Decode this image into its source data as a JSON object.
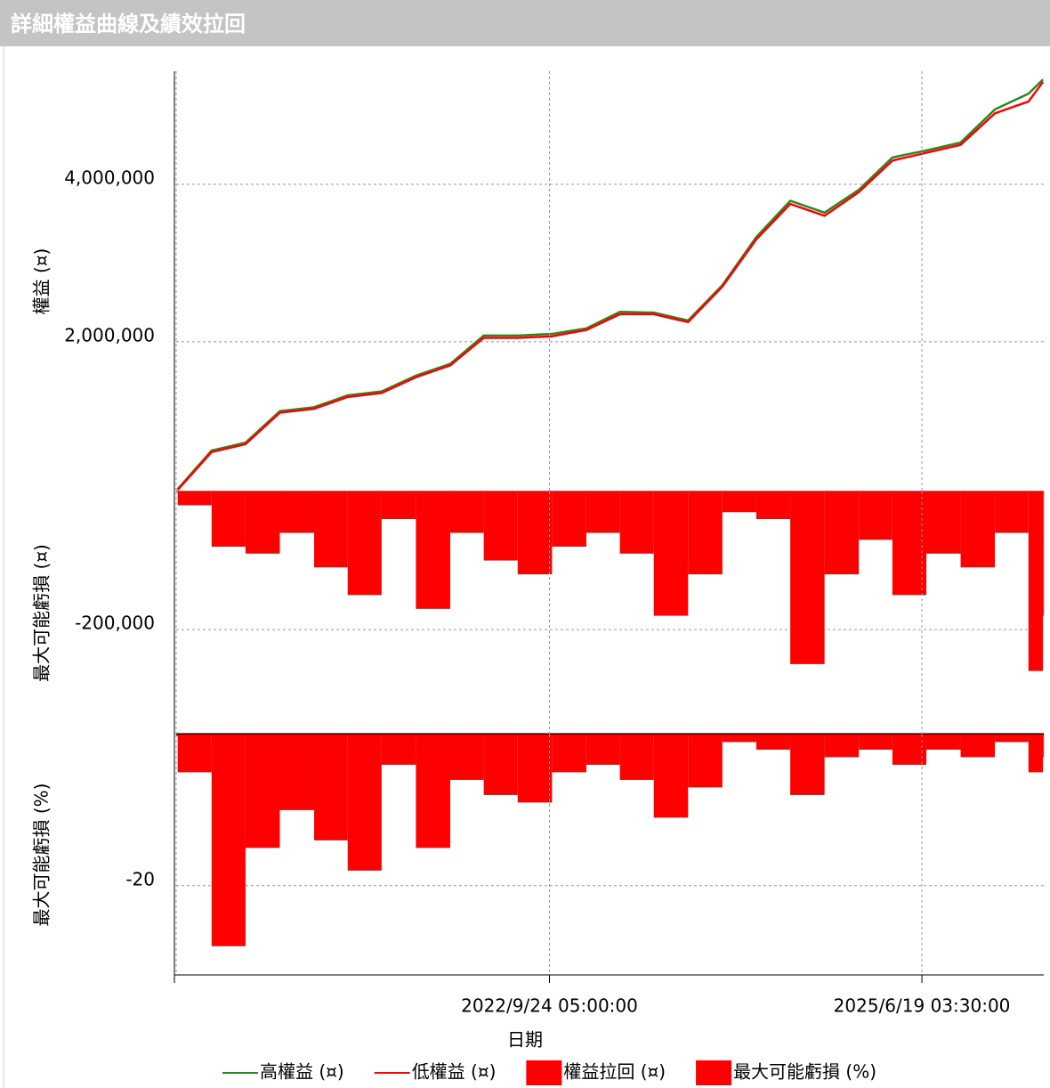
{
  "chart_data": [
    {
      "type": "line",
      "title": "詳細權益曲線及績效拉回",
      "ylabel": "權益 (¤)",
      "x": [
        "2020/1/1",
        "2020/4/1",
        "2020/7/1",
        "2020/10/1",
        "2021/1/1",
        "2021/4/1",
        "2021/7/1",
        "2021/10/1",
        "2022/1/1",
        "2022/4/1",
        "2022/7/1",
        "2022/10/1",
        "2023/1/1",
        "2023/4/1",
        "2023/7/1",
        "2023/10/1",
        "2024/1/1",
        "2024/4/1",
        "2024/7/1",
        "2024/10/1",
        "2025/1/1",
        "2025/4/1",
        "2025/7/1",
        "2025/10/1",
        "2026/1/1",
        "2026/4/1",
        "2026/5/10"
      ],
      "xlim": [
        "2019/12/28",
        "2026/5/12"
      ],
      "ylim": [
        100000,
        5435000
      ],
      "yticks": [
        {
          "value": 2000000,
          "label": "2,000,000"
        },
        {
          "value": 4000000,
          "label": "4,000,000"
        }
      ],
      "grid": true,
      "series": [
        {
          "name": "高權益 (¤)",
          "color": "#228b22",
          "values": [
            130000,
            620000,
            720000,
            1120000,
            1170000,
            1320000,
            1370000,
            1570000,
            1720000,
            2080000,
            2080000,
            2100000,
            2170000,
            2380000,
            2370000,
            2270000,
            2720000,
            3330000,
            3790000,
            3640000,
            3930000,
            4340000,
            4430000,
            4530000,
            4950000,
            5150000,
            5330000
          ]
        },
        {
          "name": "低權益 (¤)",
          "color": "#ff0000",
          "values": [
            120000,
            600000,
            700000,
            1100000,
            1150000,
            1300000,
            1350000,
            1550000,
            1700000,
            2050000,
            2050000,
            2070000,
            2150000,
            2350000,
            2350000,
            2250000,
            2700000,
            3300000,
            3750000,
            3600000,
            3900000,
            4300000,
            4400000,
            4500000,
            4900000,
            5050000,
            5300000
          ]
        }
      ]
    },
    {
      "type": "bar",
      "ylabel": "最大可能虧損 (¤)",
      "x": [
        "2020/1/1",
        "2020/4/1",
        "2020/7/1",
        "2020/10/1",
        "2021/1/1",
        "2021/4/1",
        "2021/7/1",
        "2021/10/1",
        "2022/1/1",
        "2022/4/1",
        "2022/7/1",
        "2022/10/1",
        "2023/1/1",
        "2023/4/1",
        "2023/7/1",
        "2023/10/1",
        "2024/1/1",
        "2024/4/1",
        "2024/7/1",
        "2024/10/1",
        "2025/1/1",
        "2025/4/1",
        "2025/7/1",
        "2025/10/1",
        "2026/1/1",
        "2026/4/1",
        "2026/5/10"
      ],
      "xlim": [
        "2019/12/28",
        "2026/5/12"
      ],
      "ylim": [
        -352000,
        0
      ],
      "yticks": [
        {
          "value": -200000,
          "label": "-200,000"
        }
      ],
      "grid": true,
      "series": [
        {
          "name": "權益拉回 (¤)",
          "color": "#ff0000",
          "values": [
            -20000,
            -80000,
            -90000,
            -60000,
            -110000,
            -150000,
            -40000,
            -170000,
            -60000,
            -100000,
            -120000,
            -80000,
            -60000,
            -90000,
            -180000,
            -120000,
            -30000,
            -40000,
            -250000,
            -120000,
            -70000,
            -150000,
            -90000,
            -110000,
            -60000,
            -260000,
            -180000
          ]
        }
      ]
    },
    {
      "type": "bar",
      "ylabel": "最大可能虧損 (%)",
      "xlabel": "日期",
      "x": [
        "2020/1/1",
        "2020/4/1",
        "2020/7/1",
        "2020/10/1",
        "2021/1/1",
        "2021/4/1",
        "2021/7/1",
        "2021/10/1",
        "2022/1/1",
        "2022/4/1",
        "2022/7/1",
        "2022/10/1",
        "2023/1/1",
        "2023/4/1",
        "2023/7/1",
        "2023/10/1",
        "2024/1/1",
        "2024/4/1",
        "2024/7/1",
        "2024/10/1",
        "2025/1/1",
        "2025/4/1",
        "2025/7/1",
        "2025/10/1",
        "2026/1/1",
        "2026/4/1",
        "2026/5/10"
      ],
      "xlim": [
        "2019/12/28",
        "2026/5/12"
      ],
      "xticks": [
        "2022/9/24 05:00:00",
        "2025/6/19 03:30:00"
      ],
      "ylim": [
        -31.8,
        0
      ],
      "yticks": [
        -20
      ],
      "grid": true,
      "series": [
        {
          "name": "最大可能虧損 (%)",
          "color": "#ff0000",
          "values": [
            -5,
            -28,
            -15,
            -10,
            -14,
            -18,
            -4,
            -15,
            -6,
            -8,
            -9,
            -5,
            -4,
            -6,
            -11,
            -7,
            -1,
            -2,
            -8,
            -3,
            -2,
            -4,
            -2,
            -3,
            -1,
            -5,
            -3
          ]
        }
      ]
    }
  ]
}
